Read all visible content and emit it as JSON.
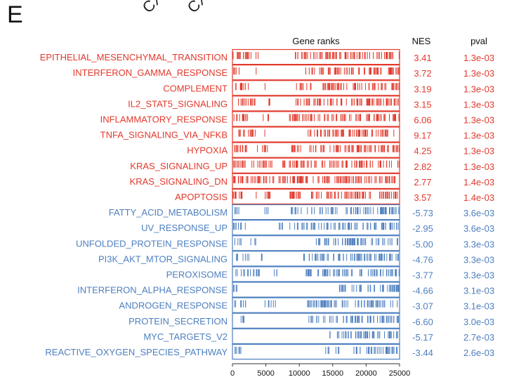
{
  "panel_label": "E",
  "clipped_header": [
    "CXC",
    "CXC"
  ],
  "colors": {
    "up": "#e2392c",
    "down": "#4d7fbf"
  },
  "chart_data": {
    "type": "barcode",
    "title": "Gene ranks",
    "col_headers": {
      "nes": "NES",
      "pval": "pval"
    },
    "xlim": [
      0,
      25000
    ],
    "xticks": [
      0,
      5000,
      10000,
      15000,
      20000,
      25000
    ],
    "pathways": [
      {
        "name": "EPITHELIAL_MESENCHYMAL_TRANSITION",
        "nes": "3.41",
        "pval": "1.3e-03",
        "dir": "up",
        "segments": [
          [
            100,
            3000,
            0.9
          ],
          [
            3500,
            4000,
            0.6
          ],
          [
            8500,
            25000,
            0.85
          ]
        ]
      },
      {
        "name": "INTERFERON_GAMMA_RESPONSE",
        "nes": "3.72",
        "pval": "1.3e-03",
        "dir": "up",
        "segments": [
          [
            200,
            1500,
            0.8
          ],
          [
            3500,
            3700,
            0.5
          ],
          [
            10500,
            12500,
            0.5
          ],
          [
            13000,
            25000,
            0.85
          ]
        ]
      },
      {
        "name": "COMPLEMENT",
        "nes": "3.19",
        "pval": "1.3e-03",
        "dir": "up",
        "segments": [
          [
            100,
            2500,
            0.8
          ],
          [
            4500,
            5000,
            0.5
          ],
          [
            9500,
            12500,
            0.5
          ],
          [
            13500,
            25000,
            0.85
          ]
        ]
      },
      {
        "name": "IL2_STAT5_SIGNALING",
        "nes": "3.15",
        "pval": "1.3e-03",
        "dir": "up",
        "segments": [
          [
            100,
            3500,
            0.75
          ],
          [
            4500,
            6000,
            0.5
          ],
          [
            9500,
            25000,
            0.8
          ]
        ]
      },
      {
        "name": "INFLAMMATORY_RESPONSE",
        "nes": "6.06",
        "pval": "1.3e-03",
        "dir": "up",
        "segments": [
          [
            100,
            2500,
            0.9
          ],
          [
            4500,
            5500,
            0.5
          ],
          [
            8500,
            25000,
            0.8
          ]
        ]
      },
      {
        "name": "TNFA_SIGNALING_VIA_NFKB",
        "nes": "9.17",
        "pval": "1.3e-03",
        "dir": "up",
        "segments": [
          [
            100,
            3500,
            0.9
          ],
          [
            4500,
            5000,
            0.5
          ],
          [
            11000,
            25000,
            0.75
          ]
        ]
      },
      {
        "name": "HYPOXIA",
        "nes": "4.25",
        "pval": "1.3e-03",
        "dir": "up",
        "segments": [
          [
            100,
            2500,
            0.9
          ],
          [
            3500,
            5500,
            0.5
          ],
          [
            8500,
            25000,
            0.8
          ]
        ]
      },
      {
        "name": "KRAS_SIGNALING_UP",
        "nes": "2.82",
        "pval": "1.3e-03",
        "dir": "up",
        "segments": [
          [
            100,
            6000,
            0.75
          ],
          [
            7500,
            25000,
            0.75
          ]
        ]
      },
      {
        "name": "KRAS_SIGNALING_DN",
        "nes": "2.77",
        "pval": "1.4e-03",
        "dir": "up",
        "segments": [
          [
            100,
            25000,
            0.85
          ]
        ]
      },
      {
        "name": "APOPTOSIS",
        "nes": "3.57",
        "pval": "1.4e-03",
        "dir": "up",
        "segments": [
          [
            100,
            2500,
            0.85
          ],
          [
            3500,
            6000,
            0.5
          ],
          [
            8500,
            25000,
            0.8
          ]
        ]
      },
      {
        "name": "FATTY_ACID_METABOLISM",
        "nes": "-5.73",
        "pval": "3.6e-03",
        "dir": "down",
        "segments": [
          [
            200,
            1500,
            0.5
          ],
          [
            4500,
            5500,
            0.5
          ],
          [
            8500,
            16000,
            0.55
          ],
          [
            17000,
            25000,
            0.9
          ]
        ]
      },
      {
        "name": "UV_RESPONSE_UP",
        "nes": "-2.95",
        "pval": "3.6e-03",
        "dir": "down",
        "segments": [
          [
            100,
            2000,
            0.8
          ],
          [
            7000,
            17000,
            0.55
          ],
          [
            17000,
            25000,
            0.8
          ]
        ]
      },
      {
        "name": "UNFOLDED_PROTEIN_RESPONSE",
        "nes": "-5.00",
        "pval": "3.3e-03",
        "dir": "down",
        "segments": [
          [
            100,
            1500,
            0.5
          ],
          [
            2500,
            3500,
            0.5
          ],
          [
            12500,
            25000,
            0.85
          ]
        ]
      },
      {
        "name": "PI3K_AKT_MTOR_SIGNALING",
        "nes": "-4.76",
        "pval": "3.3e-03",
        "dir": "down",
        "segments": [
          [
            100,
            2500,
            0.5
          ],
          [
            3500,
            4500,
            0.5
          ],
          [
            10500,
            25000,
            0.8
          ]
        ]
      },
      {
        "name": "PEROXISOME",
        "nes": "-3.77",
        "pval": "3.3e-03",
        "dir": "down",
        "segments": [
          [
            100,
            4500,
            0.6
          ],
          [
            6000,
            7000,
            0.5
          ],
          [
            11000,
            25000,
            0.8
          ]
        ]
      },
      {
        "name": "INTERFERON_ALPHA_RESPONSE",
        "nes": "-4.66",
        "pval": "3.1e-03",
        "dir": "down",
        "segments": [
          [
            100,
            800,
            0.9
          ],
          [
            15500,
            18500,
            0.6
          ],
          [
            18500,
            25000,
            0.9
          ]
        ]
      },
      {
        "name": "ANDROGEN_RESPONSE",
        "nes": "-3.07",
        "pval": "3.1e-03",
        "dir": "down",
        "segments": [
          [
            100,
            2000,
            0.6
          ],
          [
            4500,
            6500,
            0.5
          ],
          [
            11000,
            25000,
            0.85
          ]
        ]
      },
      {
        "name": "PROTEIN_SECRETION",
        "nes": "-6.60",
        "pval": "3.0e-03",
        "dir": "down",
        "segments": [
          [
            200,
            1800,
            0.5
          ],
          [
            11000,
            16500,
            0.5
          ],
          [
            16500,
            25000,
            0.9
          ]
        ]
      },
      {
        "name": "MYC_TARGETS_V2",
        "nes": "-5.17",
        "pval": "2.7e-03",
        "dir": "down",
        "segments": [
          [
            13500,
            17000,
            0.5
          ],
          [
            17000,
            25000,
            0.9
          ]
        ]
      },
      {
        "name": "REACTIVE_OXYGEN_SPECIES_PATHWAY",
        "nes": "-3.44",
        "pval": "2.6e-03",
        "dir": "down",
        "segments": [
          [
            100,
            1500,
            0.7
          ],
          [
            13500,
            16000,
            0.5
          ],
          [
            17000,
            19500,
            0.5
          ],
          [
            19500,
            25000,
            0.85
          ]
        ]
      }
    ]
  }
}
